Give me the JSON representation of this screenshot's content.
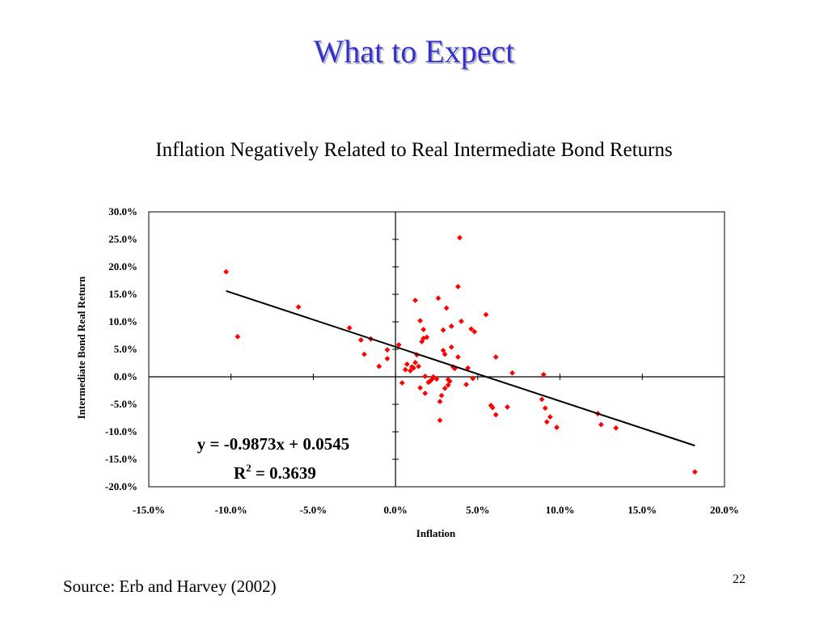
{
  "slide": {
    "title": "What to Expect",
    "subtitle": "Inflation Negatively Related to Real Intermediate Bond Returns",
    "source": "Source: Erb and Harvey (2002)",
    "page_number": "22"
  },
  "colors": {
    "title": "#3333cc",
    "points": "#ff0000",
    "trendline": "#000000"
  },
  "chart_data": {
    "type": "scatter",
    "xlabel": "Inflation",
    "ylabel": "Intermediate Bond Real Return",
    "xlim": [
      -0.15,
      0.2
    ],
    "ylim": [
      -0.2,
      0.3
    ],
    "x_ticks": [
      -0.15,
      -0.1,
      -0.05,
      0.0,
      0.05,
      0.1,
      0.15,
      0.2
    ],
    "x_tick_labels": [
      "-15.0%",
      "-10.0%",
      "-5.0%",
      "0.0%",
      "5.0%",
      "10.0%",
      "15.0%",
      "20.0%"
    ],
    "y_ticks": [
      -0.2,
      -0.15,
      -0.1,
      -0.05,
      0.0,
      0.05,
      0.1,
      0.15,
      0.2,
      0.25,
      0.3
    ],
    "y_tick_labels": [
      "-20.0%",
      "-15.0%",
      "-10.0%",
      "-5.0%",
      "0.0%",
      "5.0%",
      "10.0%",
      "15.0%",
      "20.0%",
      "25.0%",
      "30.0%"
    ],
    "grid": false,
    "trendline": {
      "slope": -0.9873,
      "intercept": 0.0545,
      "x_range": [
        -0.103,
        0.182
      ]
    },
    "equation_label": "y = -0.9873x + 0.0545",
    "r2_label": "R",
    "r2_sup": "2",
    "r2_value": " = 0.3639",
    "points": [
      [
        -0.103,
        0.191
      ],
      [
        -0.096,
        0.073
      ],
      [
        -0.059,
        0.127
      ],
      [
        -0.028,
        0.089
      ],
      [
        -0.021,
        0.067
      ],
      [
        -0.019,
        0.041
      ],
      [
        -0.015,
        0.069
      ],
      [
        -0.01,
        0.019
      ],
      [
        -0.005,
        0.049
      ],
      [
        -0.005,
        0.033
      ],
      [
        0.002,
        0.058
      ],
      [
        0.004,
        -0.011
      ],
      [
        0.006,
        0.013
      ],
      [
        0.007,
        0.023
      ],
      [
        0.009,
        0.011
      ],
      [
        0.01,
        0.018
      ],
      [
        0.011,
        0.016
      ],
      [
        0.012,
        0.139
      ],
      [
        0.012,
        0.026
      ],
      [
        0.013,
        0.04
      ],
      [
        0.014,
        0.019
      ],
      [
        0.015,
        -0.02
      ],
      [
        0.015,
        0.102
      ],
      [
        0.016,
        0.064
      ],
      [
        0.017,
        0.086
      ],
      [
        0.017,
        0.07
      ],
      [
        0.018,
        0.001
      ],
      [
        0.018,
        -0.03
      ],
      [
        0.019,
        0.072
      ],
      [
        0.02,
        -0.01
      ],
      [
        0.021,
        -0.008
      ],
      [
        0.022,
        -0.005
      ],
      [
        0.023,
        0.0
      ],
      [
        0.025,
        -0.004
      ],
      [
        0.026,
        0.143
      ],
      [
        0.027,
        -0.079
      ],
      [
        0.027,
        -0.045
      ],
      [
        0.028,
        -0.034
      ],
      [
        0.029,
        0.085
      ],
      [
        0.029,
        0.048
      ],
      [
        0.03,
        -0.021
      ],
      [
        0.03,
        0.041
      ],
      [
        0.031,
        0.125
      ],
      [
        0.032,
        -0.015
      ],
      [
        0.032,
        -0.005
      ],
      [
        0.033,
        -0.008
      ],
      [
        0.034,
        0.054
      ],
      [
        0.034,
        0.092
      ],
      [
        0.035,
        0.018
      ],
      [
        0.036,
        0.015
      ],
      [
        0.038,
        0.164
      ],
      [
        0.038,
        0.036
      ],
      [
        0.039,
        0.253
      ],
      [
        0.04,
        0.101
      ],
      [
        0.043,
        -0.014
      ],
      [
        0.044,
        0.016
      ],
      [
        0.046,
        0.087
      ],
      [
        0.047,
        -0.003
      ],
      [
        0.048,
        0.082
      ],
      [
        0.055,
        0.113
      ],
      [
        0.058,
        -0.052
      ],
      [
        0.059,
        -0.056
      ],
      [
        0.061,
        0.036
      ],
      [
        0.061,
        -0.069
      ],
      [
        0.068,
        -0.055
      ],
      [
        0.071,
        0.007
      ],
      [
        0.089,
        -0.041
      ],
      [
        0.09,
        0.004
      ],
      [
        0.091,
        -0.057
      ],
      [
        0.092,
        -0.082
      ],
      [
        0.094,
        -0.073
      ],
      [
        0.098,
        -0.092
      ],
      [
        0.123,
        -0.067
      ],
      [
        0.125,
        -0.087
      ],
      [
        0.134,
        -0.093
      ],
      [
        0.182,
        -0.173
      ]
    ]
  }
}
